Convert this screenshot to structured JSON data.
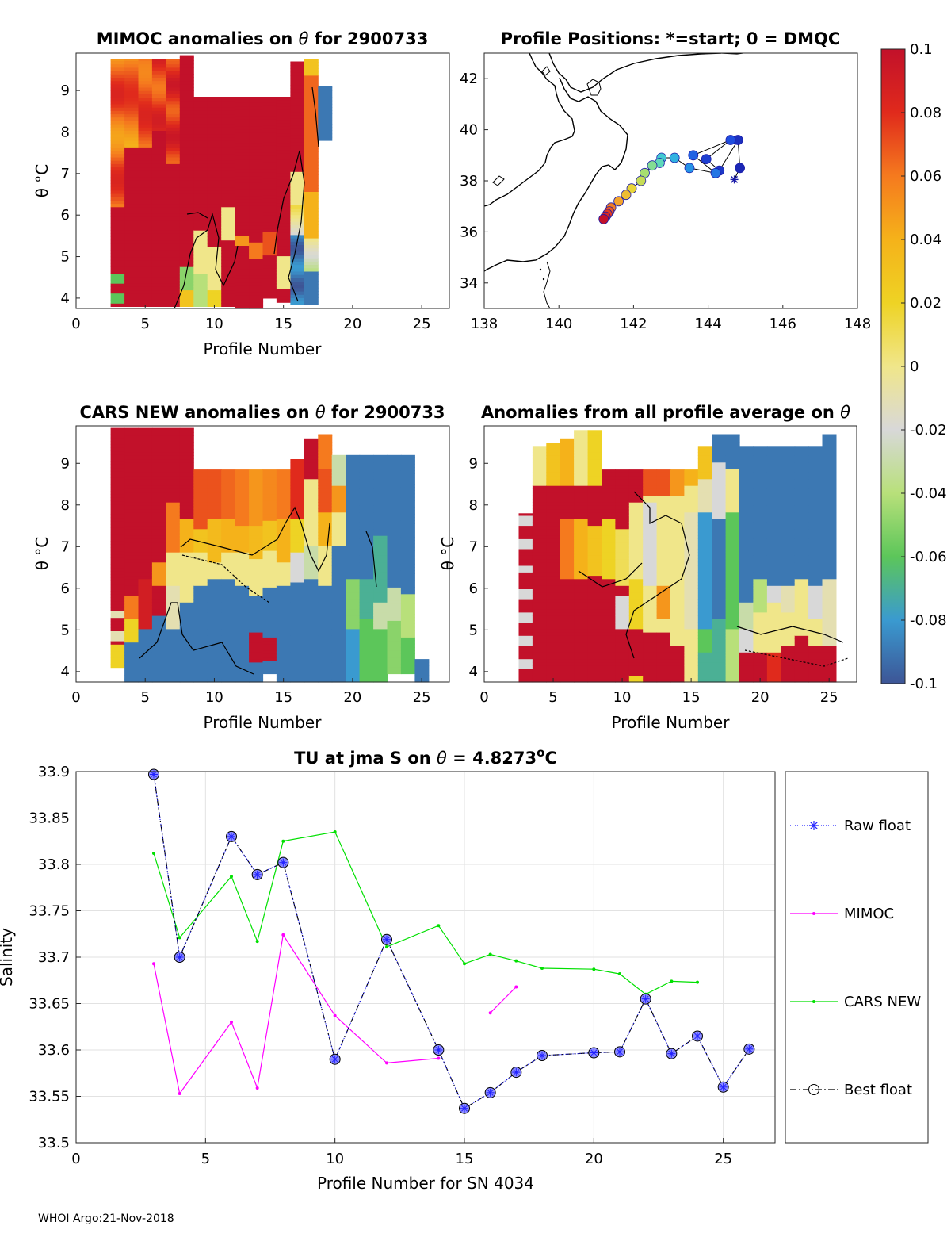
{
  "footer": "WHOI Argo:21-Nov-2018",
  "colorbar": {
    "ticks": [
      "0.1",
      "0.08",
      "0.06",
      "0.04",
      "0.02",
      "0",
      "-0.02",
      "-0.04",
      "-0.06",
      "-0.08",
      "-0.1"
    ],
    "stops": [
      "#c2112a",
      "#e02a1c",
      "#f57a1e",
      "#f5b21a",
      "#eed324",
      "#f0e68a",
      "#d8d8d8",
      "#b8e07a",
      "#5cc65a",
      "#3a9ad0",
      "#3d5596"
    ]
  },
  "panels": {
    "mimoc": {
      "title_pre": "MIMOC anomalies on ",
      "title_sym": "θ",
      "title_post": "  for 2900733",
      "ylabel": "θ °C",
      "xlabel": "Profile Number",
      "xticks": [
        "0",
        "5",
        "10",
        "15",
        "20",
        "25"
      ],
      "yticks": [
        "4",
        "5",
        "6",
        "7",
        "8",
        "9"
      ]
    },
    "positions": {
      "title": "Profile Positions: *=start; 0 = DMQC",
      "xticks": [
        "138",
        "140",
        "142",
        "144",
        "146",
        "148"
      ],
      "yticks": [
        "34",
        "36",
        "38",
        "40",
        "42"
      ]
    },
    "cars": {
      "title_pre": "CARS NEW anomalies on ",
      "title_sym": "θ",
      "title_post": " for 2900733",
      "ylabel": "θ °C",
      "xlabel": "Profile Number",
      "xticks": [
        "0",
        "5",
        "10",
        "15",
        "20",
        "25"
      ],
      "yticks": [
        "4",
        "5",
        "6",
        "7",
        "8",
        "9"
      ]
    },
    "allavg": {
      "title_pre": "Anomalies from all profile average on ",
      "title_sym": "θ",
      "ylabel": "θ °C",
      "xlabel": "Profile Number",
      "xticks": [
        "0",
        "5",
        "10",
        "15",
        "20",
        "25"
      ],
      "yticks": [
        "4",
        "5",
        "6",
        "7",
        "8",
        "9"
      ]
    }
  },
  "colors": {
    "raw": "#2020ff",
    "mimoc": "#ff00ff",
    "cars": "#00e000",
    "best": "#000000",
    "marker_fill": "#8c8cff"
  },
  "chart_data": {
    "type": "line",
    "title_pre": "TU at jma S on ",
    "title_sym": "θ",
    "title_eq": " = 4.8273",
    "title_unit": "o",
    "title_c": "C",
    "xlabel": "Profile Number for SN 4034",
    "ylabel": "Salinity",
    "xlim": [
      0,
      27
    ],
    "ylim": [
      33.5,
      33.9
    ],
    "xticks": [
      "0",
      "5",
      "10",
      "15",
      "20",
      "25"
    ],
    "yticks": [
      "33.5",
      "33.55",
      "33.6",
      "33.65",
      "33.7",
      "33.75",
      "33.8",
      "33.85",
      "33.9"
    ],
    "legend_position": "right",
    "series": [
      {
        "name": "Raw float",
        "key": "raw",
        "x": [
          3,
          4,
          6,
          7,
          8,
          10,
          12,
          14,
          15,
          16,
          17,
          18,
          20,
          21,
          22,
          23,
          24,
          25,
          26
        ],
        "y": [
          33.897,
          33.7,
          33.83,
          33.789,
          33.802,
          33.59,
          33.719,
          33.6,
          33.537,
          33.554,
          33.576,
          33.594,
          33.597,
          33.598,
          33.655,
          33.596,
          33.615,
          33.56,
          33.601
        ]
      },
      {
        "name": "MIMOC",
        "key": "mimoc",
        "segments": [
          {
            "x": [
              3,
              4,
              6,
              7,
              8,
              10,
              12,
              14
            ],
            "y": [
              33.693,
              33.553,
              33.63,
              33.559,
              33.724,
              33.637,
              33.586,
              33.591
            ]
          },
          {
            "x": [
              16,
              17
            ],
            "y": [
              33.64,
              33.668
            ]
          }
        ]
      },
      {
        "name": "CARS NEW",
        "key": "cars",
        "x": [
          3,
          4,
          6,
          7,
          8,
          10,
          12,
          14,
          15,
          16,
          17,
          18,
          20,
          21,
          22,
          23,
          24
        ],
        "y": [
          33.812,
          33.721,
          33.787,
          33.717,
          33.825,
          33.835,
          33.711,
          33.734,
          33.693,
          33.703,
          33.696,
          33.688,
          33.687,
          33.682,
          33.66,
          33.674,
          33.673
        ]
      },
      {
        "name": "Best float",
        "key": "best",
        "x": [
          3,
          4,
          6,
          7,
          8,
          10,
          12,
          14,
          15,
          16,
          17,
          18,
          20,
          21,
          22,
          23,
          24,
          25,
          26
        ],
        "y": [
          33.897,
          33.7,
          33.83,
          33.789,
          33.802,
          33.59,
          33.719,
          33.6,
          33.537,
          33.554,
          33.576,
          33.594,
          33.597,
          33.598,
          33.655,
          33.596,
          33.615,
          33.56,
          33.601
        ]
      }
    ]
  },
  "map_data": {
    "xlim": [
      138,
      148
    ],
    "ylim": [
      33,
      43
    ],
    "positions": [
      [
        144.7,
        38.05,
        0.0
      ],
      [
        144.85,
        38.5,
        0.03
      ],
      [
        144.8,
        39.6,
        0.05
      ],
      [
        144.3,
        38.4,
        0.07
      ],
      [
        143.95,
        38.85,
        0.09
      ],
      [
        144.6,
        39.6,
        0.12
      ],
      [
        143.6,
        39.0,
        0.15
      ],
      [
        144.2,
        38.3,
        0.18
      ],
      [
        143.5,
        38.5,
        0.22
      ],
      [
        143.1,
        38.9,
        0.28
      ],
      [
        142.75,
        38.9,
        0.34
      ],
      [
        142.7,
        38.7,
        0.4
      ],
      [
        142.5,
        38.6,
        0.46
      ],
      [
        142.3,
        38.3,
        0.52
      ],
      [
        142.2,
        38.0,
        0.57
      ],
      [
        141.95,
        37.7,
        0.63
      ],
      [
        141.8,
        37.45,
        0.68
      ],
      [
        141.6,
        37.2,
        0.73
      ],
      [
        141.4,
        36.95,
        0.79
      ],
      [
        141.35,
        36.8,
        0.84
      ],
      [
        141.3,
        36.7,
        0.89
      ],
      [
        141.25,
        36.6,
        0.94
      ],
      [
        141.2,
        36.5,
        1.0
      ]
    ]
  }
}
